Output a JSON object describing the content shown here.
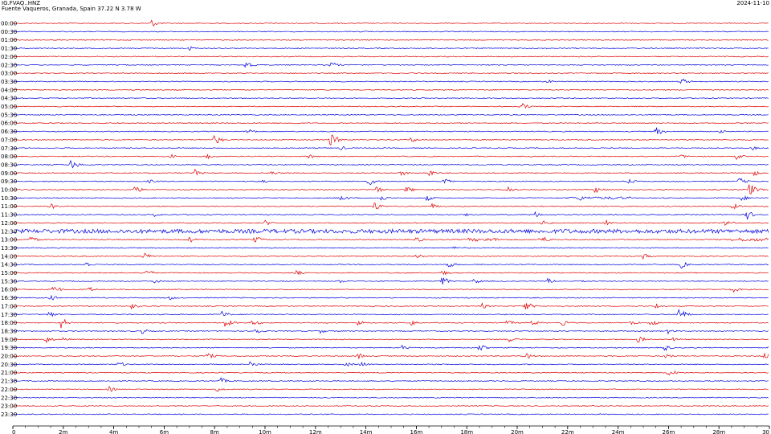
{
  "header": {
    "station": "IG.FVAQ..HNZ",
    "location": "Fuente Vaqueros, Granada, Spain  37.22 N 3.78 W",
    "date": "2024-11-10"
  },
  "chart_data": {
    "type": "helicorder",
    "row_labels": [
      "00:00",
      "00:30",
      "01:00",
      "01:30",
      "02:00",
      "02:30",
      "03:00",
      "03:30",
      "04:00",
      "04:30",
      "05:00",
      "05:30",
      "06:00",
      "06:30",
      "07:00",
      "07:30",
      "08:00",
      "08:30",
      "09:00",
      "09:30",
      "10:00",
      "10:30",
      "11:00",
      "11:30",
      "12:00",
      "12:30",
      "13:00",
      "13:30",
      "14:00",
      "14:30",
      "15:00",
      "15:30",
      "16:00",
      "16:30",
      "17:00",
      "17:30",
      "18:00",
      "18:30",
      "19:00",
      "19:30",
      "20:00",
      "20:30",
      "21:00",
      "21:30",
      "22:00",
      "22:30",
      "23:00",
      "23:30"
    ],
    "row_colors": [
      "#e00000",
      "#0000dd"
    ],
    "xlim": [
      0,
      30
    ],
    "x_unit": "minutes",
    "x_ticks": [
      "0",
      "2m",
      "4m",
      "6m",
      "8m",
      "10m",
      "12m",
      "14m",
      "16m",
      "18m",
      "20m",
      "22m",
      "24m",
      "26m",
      "28m",
      "30"
    ],
    "x_tick_values": [
      0,
      2,
      4,
      6,
      8,
      10,
      12,
      14,
      16,
      18,
      20,
      22,
      24,
      26,
      28,
      30
    ],
    "events": [
      {
        "row": 0,
        "t": 5.5,
        "amp": 5
      },
      {
        "row": 3,
        "t": 7.0,
        "amp": 3
      },
      {
        "row": 5,
        "t": 9.2,
        "amp": 6
      },
      {
        "row": 5,
        "t": 12.6,
        "amp": 5
      },
      {
        "row": 7,
        "t": 21.2,
        "amp": 3
      },
      {
        "row": 7,
        "t": 26.5,
        "amp": 5
      },
      {
        "row": 10,
        "t": 20.2,
        "amp": 5
      },
      {
        "row": 13,
        "t": 9.3,
        "amp": 5
      },
      {
        "row": 13,
        "t": 25.5,
        "amp": 6
      },
      {
        "row": 13,
        "t": 28.0,
        "amp": 3
      },
      {
        "row": 14,
        "t": 8.0,
        "amp": 7
      },
      {
        "row": 14,
        "t": 12.6,
        "amp": 9
      },
      {
        "row": 14,
        "t": 15.8,
        "amp": 4
      },
      {
        "row": 15,
        "t": 13.0,
        "amp": 3
      },
      {
        "row": 15,
        "t": 29.3,
        "amp": 3
      },
      {
        "row": 16,
        "t": 6.2,
        "amp": 4
      },
      {
        "row": 16,
        "t": 7.7,
        "amp": 4
      },
      {
        "row": 16,
        "t": 11.7,
        "amp": 4
      },
      {
        "row": 16,
        "t": 26.5,
        "amp": 3
      },
      {
        "row": 16,
        "t": 28.7,
        "amp": 4
      },
      {
        "row": 17,
        "t": 2.3,
        "amp": 7
      },
      {
        "row": 18,
        "t": 7.2,
        "amp": 5
      },
      {
        "row": 18,
        "t": 10.2,
        "amp": 4
      },
      {
        "row": 18,
        "t": 15.4,
        "amp": 4
      },
      {
        "row": 18,
        "t": 16.5,
        "amp": 5
      },
      {
        "row": 18,
        "t": 29.4,
        "amp": 4
      },
      {
        "row": 19,
        "t": 5.4,
        "amp": 3
      },
      {
        "row": 19,
        "t": 9.8,
        "amp": 3
      },
      {
        "row": 19,
        "t": 14.1,
        "amp": 6
      },
      {
        "row": 19,
        "t": 17.1,
        "amp": 5
      },
      {
        "row": 19,
        "t": 24.4,
        "amp": 4
      },
      {
        "row": 19,
        "t": 28.8,
        "amp": 5
      },
      {
        "row": 20,
        "t": 4.8,
        "amp": 6
      },
      {
        "row": 20,
        "t": 14.4,
        "amp": 5
      },
      {
        "row": 20,
        "t": 15.6,
        "amp": 5
      },
      {
        "row": 20,
        "t": 19.6,
        "amp": 5
      },
      {
        "row": 20,
        "t": 23.1,
        "amp": 5
      },
      {
        "row": 20,
        "t": 29.2,
        "amp": 9
      },
      {
        "row": 21,
        "t": 13.0,
        "amp": 5
      },
      {
        "row": 21,
        "t": 14.6,
        "amp": 4
      },
      {
        "row": 21,
        "t": 16.4,
        "amp": 4
      },
      {
        "row": 21,
        "t": 22.5,
        "amp": 4
      },
      {
        "row": 21,
        "t": 28.9,
        "amp": 4
      },
      {
        "row": 22,
        "t": 1.5,
        "amp": 4
      },
      {
        "row": 22,
        "t": 14.3,
        "amp": 7
      },
      {
        "row": 22,
        "t": 16.6,
        "amp": 4
      },
      {
        "row": 22,
        "t": 28.5,
        "amp": 5
      },
      {
        "row": 23,
        "t": 5.6,
        "amp": 3
      },
      {
        "row": 23,
        "t": 18.0,
        "amp": 3
      },
      {
        "row": 23,
        "t": 20.7,
        "amp": 4
      },
      {
        "row": 23,
        "t": 29.1,
        "amp": 6
      },
      {
        "row": 24,
        "t": 10.0,
        "amp": 4
      },
      {
        "row": 24,
        "t": 21.0,
        "amp": 5
      },
      {
        "row": 24,
        "t": 23.5,
        "amp": 4
      },
      {
        "row": 24,
        "t": 28.2,
        "amp": 5
      },
      {
        "row": 25,
        "t": 1.1,
        "amp": 3
      },
      {
        "row": 25,
        "t": 8.3,
        "amp": 3
      },
      {
        "row": 25,
        "t": 21.9,
        "amp": 4
      },
      {
        "row": 26,
        "t": 0.7,
        "amp": 5
      },
      {
        "row": 26,
        "t": 7.0,
        "amp": 4
      },
      {
        "row": 26,
        "t": 9.6,
        "amp": 5
      },
      {
        "row": 26,
        "t": 16.0,
        "amp": 4
      },
      {
        "row": 26,
        "t": 20.9,
        "amp": 7
      },
      {
        "row": 27,
        "t": 17.5,
        "amp": 3
      },
      {
        "row": 28,
        "t": 5.2,
        "amp": 5
      },
      {
        "row": 28,
        "t": 16.0,
        "amp": 4
      },
      {
        "row": 28,
        "t": 25.0,
        "amp": 4
      },
      {
        "row": 29,
        "t": 2.9,
        "amp": 4
      },
      {
        "row": 29,
        "t": 17.2,
        "amp": 6
      },
      {
        "row": 29,
        "t": 26.5,
        "amp": 5
      },
      {
        "row": 30,
        "t": 5.3,
        "amp": 5
      },
      {
        "row": 30,
        "t": 11.2,
        "amp": 4
      },
      {
        "row": 30,
        "t": 17.0,
        "amp": 4
      },
      {
        "row": 31,
        "t": 5.6,
        "amp": 3
      },
      {
        "row": 31,
        "t": 12.9,
        "amp": 3
      },
      {
        "row": 31,
        "t": 17.0,
        "amp": 7
      },
      {
        "row": 31,
        "t": 18.3,
        "amp": 4
      },
      {
        "row": 31,
        "t": 21.2,
        "amp": 4
      },
      {
        "row": 31,
        "t": 22.4,
        "amp": 3
      },
      {
        "row": 32,
        "t": 1.6,
        "amp": 6
      },
      {
        "row": 32,
        "t": 3.0,
        "amp": 4
      },
      {
        "row": 32,
        "t": 28.5,
        "amp": 5
      },
      {
        "row": 33,
        "t": 1.5,
        "amp": 4
      },
      {
        "row": 33,
        "t": 6.2,
        "amp": 3
      },
      {
        "row": 34,
        "t": 4.7,
        "amp": 4
      },
      {
        "row": 34,
        "t": 18.6,
        "amp": 4
      },
      {
        "row": 34,
        "t": 20.3,
        "amp": 7
      },
      {
        "row": 34,
        "t": 25.5,
        "amp": 4
      },
      {
        "row": 35,
        "t": 1.4,
        "amp": 5
      },
      {
        "row": 35,
        "t": 8.3,
        "amp": 5
      },
      {
        "row": 35,
        "t": 26.4,
        "amp": 9
      },
      {
        "row": 36,
        "t": 1.9,
        "amp": 8
      },
      {
        "row": 36,
        "t": 8.4,
        "amp": 7
      },
      {
        "row": 36,
        "t": 9.5,
        "amp": 5
      },
      {
        "row": 36,
        "t": 13.7,
        "amp": 4
      },
      {
        "row": 36,
        "t": 15.8,
        "amp": 4
      },
      {
        "row": 36,
        "t": 19.6,
        "amp": 4
      },
      {
        "row": 36,
        "t": 20.6,
        "amp": 4
      },
      {
        "row": 36,
        "t": 21.8,
        "amp": 4
      },
      {
        "row": 36,
        "t": 24.5,
        "amp": 4
      },
      {
        "row": 36,
        "t": 25.3,
        "amp": 5
      },
      {
        "row": 37,
        "t": 5.1,
        "amp": 4
      },
      {
        "row": 37,
        "t": 9.6,
        "amp": 5
      },
      {
        "row": 37,
        "t": 12.2,
        "amp": 3
      },
      {
        "row": 37,
        "t": 26.0,
        "amp": 4
      },
      {
        "row": 38,
        "t": 1.3,
        "amp": 5
      },
      {
        "row": 38,
        "t": 2.0,
        "amp": 3
      },
      {
        "row": 38,
        "t": 19.7,
        "amp": 4
      },
      {
        "row": 38,
        "t": 24.8,
        "amp": 5
      },
      {
        "row": 38,
        "t": 26.2,
        "amp": 3
      },
      {
        "row": 39,
        "t": 15.4,
        "amp": 4
      },
      {
        "row": 39,
        "t": 18.5,
        "amp": 5
      },
      {
        "row": 39,
        "t": 25.8,
        "amp": 5
      },
      {
        "row": 39,
        "t": 30.0,
        "amp": 4
      },
      {
        "row": 40,
        "t": 7.7,
        "amp": 5
      },
      {
        "row": 40,
        "t": 13.7,
        "amp": 4
      },
      {
        "row": 40,
        "t": 20.4,
        "amp": 4
      },
      {
        "row": 40,
        "t": 25.9,
        "amp": 4
      },
      {
        "row": 40,
        "t": 29.8,
        "amp": 5
      },
      {
        "row": 41,
        "t": 4.2,
        "amp": 4
      },
      {
        "row": 41,
        "t": 9.4,
        "amp": 5
      },
      {
        "row": 41,
        "t": 13.2,
        "amp": 4
      },
      {
        "row": 41,
        "t": 13.8,
        "amp": 4
      },
      {
        "row": 42,
        "t": 26.0,
        "amp": 6
      },
      {
        "row": 43,
        "t": 8.2,
        "amp": 5
      },
      {
        "row": 44,
        "t": 3.8,
        "amp": 4
      },
      {
        "row": 44,
        "t": 8.1,
        "amp": 4
      }
    ],
    "bands": [
      {
        "row": 25,
        "t0": 0.0,
        "t1": 30.0,
        "amp": 2.5
      },
      {
        "row": 26,
        "t0": 18.0,
        "t1": 19.3,
        "amp": 2
      },
      {
        "row": 26,
        "t0": 28.5,
        "t1": 30.0,
        "amp": 2
      },
      {
        "row": 21,
        "t0": 22.0,
        "t1": 24.5,
        "amp": 1.5
      }
    ]
  }
}
